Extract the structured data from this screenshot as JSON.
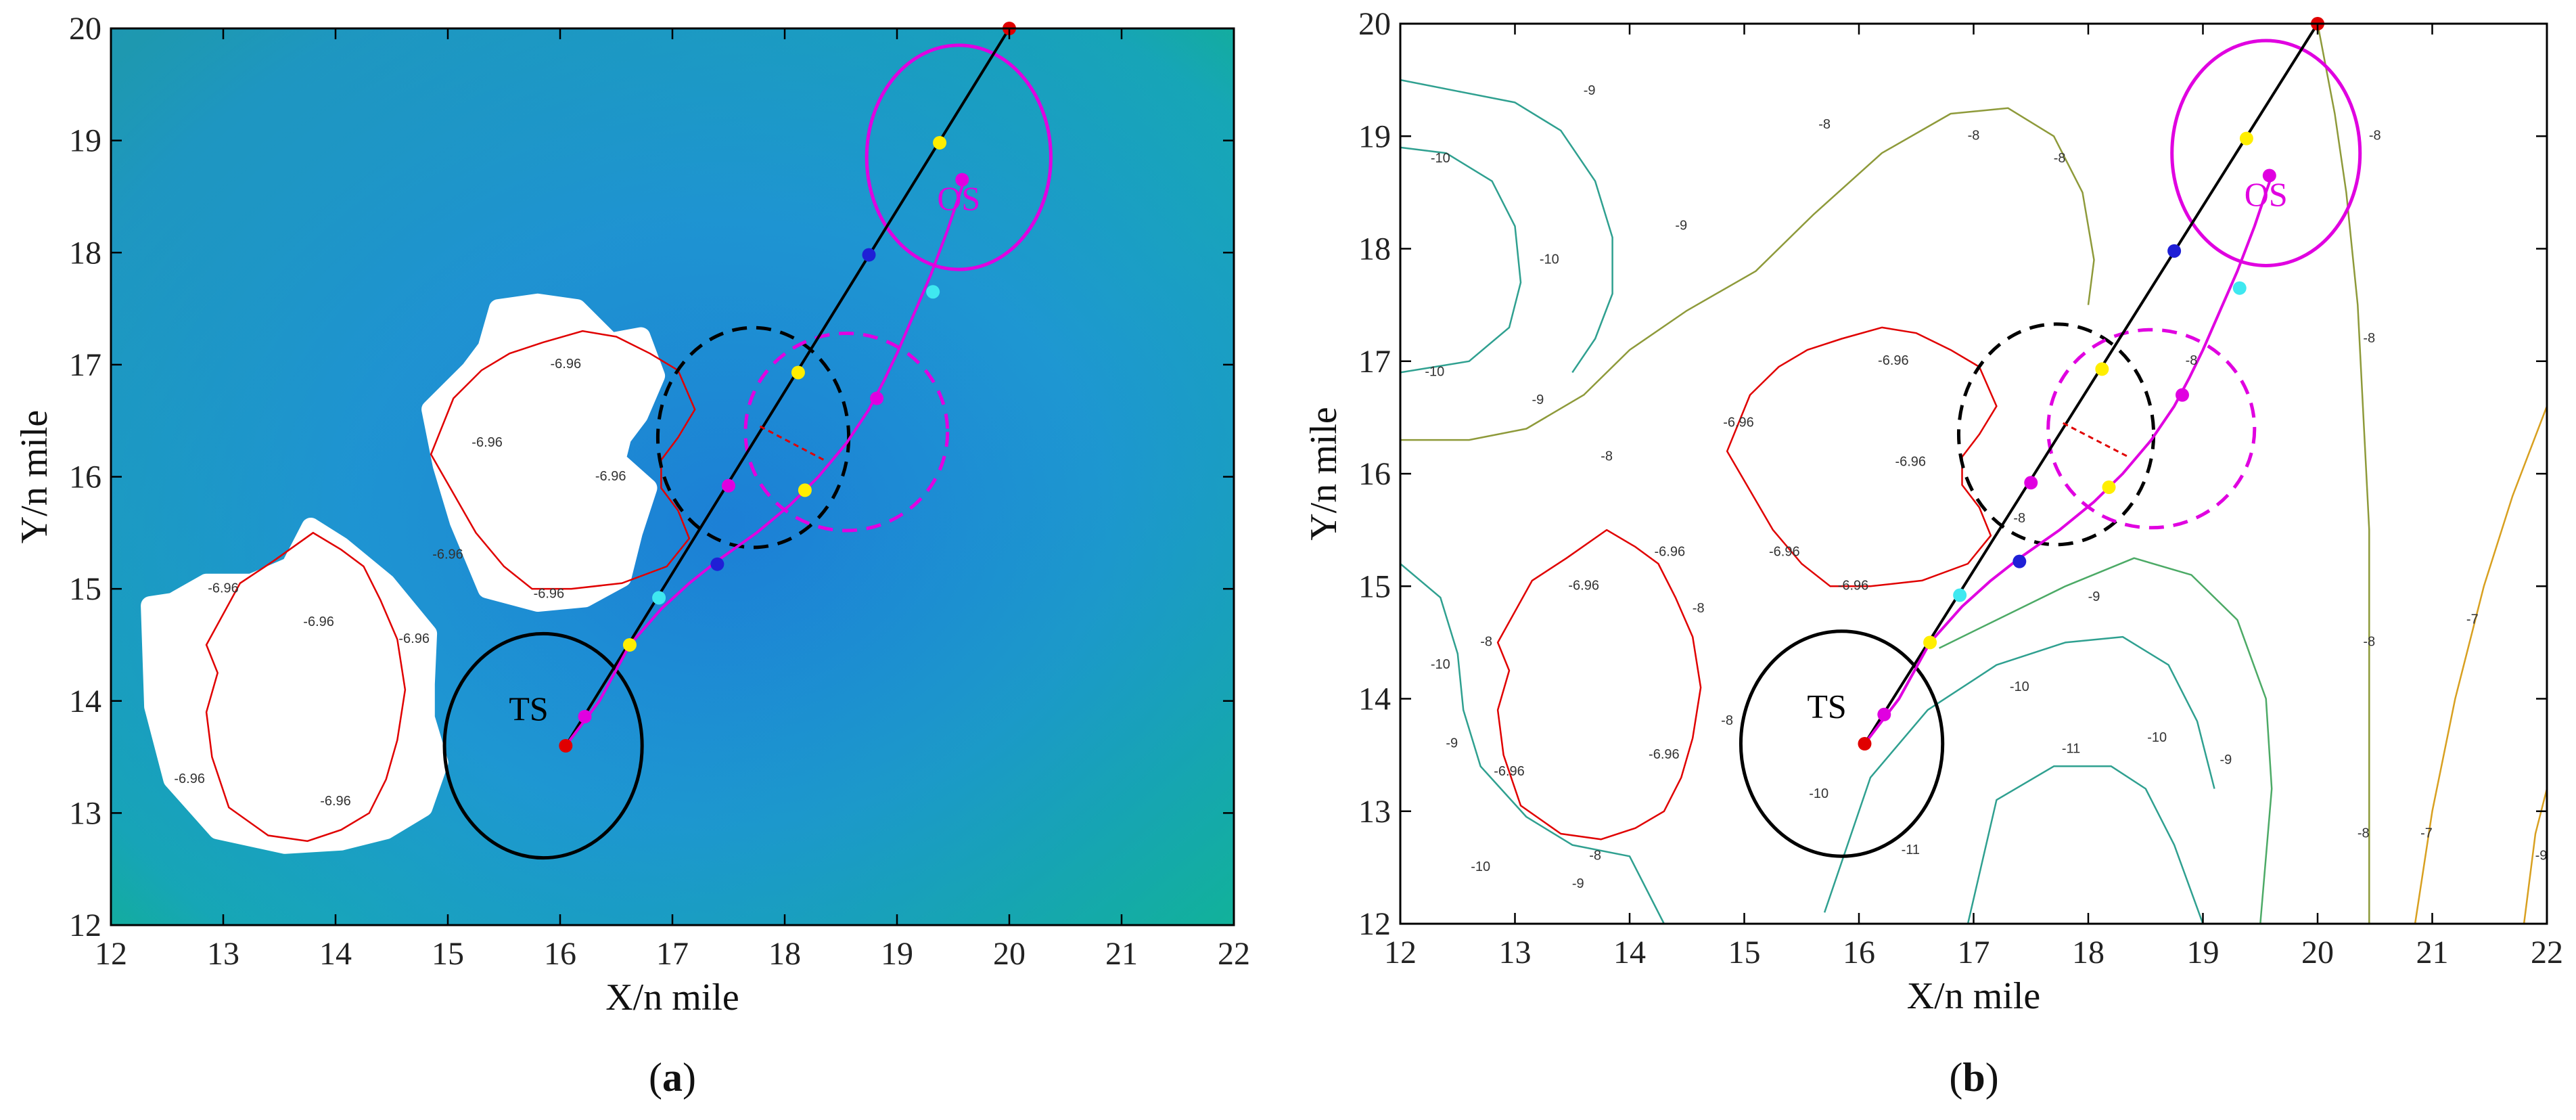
{
  "figure": {
    "panels": [
      "(a)",
      "(b)"
    ]
  },
  "chart_data": [
    {
      "type": "scatter",
      "panel": "(a)",
      "caption_letter": "a",
      "background": "heatmap",
      "xlabel": "X/n mile",
      "ylabel": "Y/n mile",
      "xlim": [
        12,
        22
      ],
      "ylim": [
        12,
        20
      ],
      "xticks": [
        12,
        13,
        14,
        15,
        16,
        17,
        18,
        19,
        20,
        21,
        22
      ],
      "yticks": [
        12,
        13,
        14,
        15,
        16,
        17,
        18,
        19,
        20
      ],
      "annotations": [
        {
          "text": "TS",
          "x": 15.72,
          "y": 13.9,
          "color": "#000000"
        },
        {
          "text": "OS",
          "x": 19.55,
          "y": 18.45,
          "color": "#e000e0"
        }
      ],
      "contour_labels": [
        {
          "text": "-6.96",
          "x": 14.7,
          "y": 14.55,
          "color": "#333"
        },
        {
          "text": "-6.96",
          "x": 13.0,
          "y": 15.0,
          "color": "#333"
        },
        {
          "text": "-6.96",
          "x": 13.85,
          "y": 14.7,
          "color": "#333"
        },
        {
          "text": "-6.96",
          "x": 12.7,
          "y": 13.3,
          "color": "#333"
        },
        {
          "text": "-6.96",
          "x": 14.0,
          "y": 13.1,
          "color": "#333"
        },
        {
          "text": "-6.96",
          "x": 15.0,
          "y": 15.3,
          "color": "#333"
        },
        {
          "text": "-6.96",
          "x": 15.35,
          "y": 16.3,
          "color": "#333"
        },
        {
          "text": "-6.96",
          "x": 15.9,
          "y": 14.95,
          "color": "#333"
        },
        {
          "text": "-6.96",
          "x": 16.45,
          "y": 16.0,
          "color": "#333"
        },
        {
          "text": "-6.96",
          "x": 16.05,
          "y": 17.0,
          "color": "#333"
        }
      ]
    },
    {
      "type": "scatter",
      "panel": "(b)",
      "caption_letter": "b",
      "background": "contour",
      "xlabel": "X/n mile",
      "ylabel": "Y/n mile",
      "xlim": [
        12,
        22
      ],
      "ylim": [
        12,
        20
      ],
      "xticks": [
        12,
        13,
        14,
        15,
        16,
        17,
        18,
        19,
        20,
        21,
        22
      ],
      "yticks": [
        12,
        13,
        14,
        15,
        16,
        17,
        18,
        19,
        20
      ],
      "annotations": [
        {
          "text": "TS",
          "x": 15.72,
          "y": 13.9,
          "color": "#000000"
        },
        {
          "text": "OS",
          "x": 19.55,
          "y": 18.45,
          "color": "#e000e0"
        }
      ],
      "contour_labels": [
        {
          "text": "-10",
          "x": 12.35,
          "y": 18.8,
          "color": "#333"
        },
        {
          "text": "-10",
          "x": 12.3,
          "y": 16.9,
          "color": "#333"
        },
        {
          "text": "-10",
          "x": 13.3,
          "y": 17.9,
          "color": "#333"
        },
        {
          "text": "-9",
          "x": 13.65,
          "y": 19.4,
          "color": "#333"
        },
        {
          "text": "-9",
          "x": 14.45,
          "y": 18.2,
          "color": "#333"
        },
        {
          "text": "-9",
          "x": 13.2,
          "y": 16.65,
          "color": "#333"
        },
        {
          "text": "-8",
          "x": 13.8,
          "y": 16.15,
          "color": "#333"
        },
        {
          "text": "-8",
          "x": 15.7,
          "y": 19.1,
          "color": "#333"
        },
        {
          "text": "-8",
          "x": 17.0,
          "y": 19.0,
          "color": "#333"
        },
        {
          "text": "-8",
          "x": 17.75,
          "y": 18.8,
          "color": "#333"
        },
        {
          "text": "-8",
          "x": 18.9,
          "y": 17.0,
          "color": "#333"
        },
        {
          "text": "-8",
          "x": 20.5,
          "y": 19.0,
          "color": "#333"
        },
        {
          "text": "-8",
          "x": 20.45,
          "y": 17.2,
          "color": "#333"
        },
        {
          "text": "-8",
          "x": 20.45,
          "y": 14.5,
          "color": "#333"
        },
        {
          "text": "-8",
          "x": 20.4,
          "y": 12.8,
          "color": "#333"
        },
        {
          "text": "-8",
          "x": 12.75,
          "y": 14.5,
          "color": "#333"
        },
        {
          "text": "-8",
          "x": 14.6,
          "y": 14.8,
          "color": "#333"
        },
        {
          "text": "-8",
          "x": 14.85,
          "y": 13.8,
          "color": "#333"
        },
        {
          "text": "-8",
          "x": 13.7,
          "y": 12.6,
          "color": "#333"
        },
        {
          "text": "-8",
          "x": 17.4,
          "y": 15.6,
          "color": "#333"
        },
        {
          "text": "-9",
          "x": 12.45,
          "y": 13.6,
          "color": "#333"
        },
        {
          "text": "-9",
          "x": 13.55,
          "y": 12.35,
          "color": "#333"
        },
        {
          "text": "-9",
          "x": 18.05,
          "y": 14.9,
          "color": "#333"
        },
        {
          "text": "-9",
          "x": 19.2,
          "y": 13.45,
          "color": "#333"
        },
        {
          "text": "-9",
          "x": 21.95,
          "y": 12.6,
          "color": "#333"
        },
        {
          "text": "-10",
          "x": 12.35,
          "y": 14.3,
          "color": "#333"
        },
        {
          "text": "-10",
          "x": 12.7,
          "y": 12.5,
          "color": "#333"
        },
        {
          "text": "-10",
          "x": 15.65,
          "y": 13.15,
          "color": "#333"
        },
        {
          "text": "-10",
          "x": 17.4,
          "y": 14.1,
          "color": "#333"
        },
        {
          "text": "-10",
          "x": 18.6,
          "y": 13.65,
          "color": "#333"
        },
        {
          "text": "-11",
          "x": 16.45,
          "y": 12.65,
          "color": "#333"
        },
        {
          "text": "-11",
          "x": 17.85,
          "y": 13.55,
          "color": "#333"
        },
        {
          "text": "-7",
          "x": 20.95,
          "y": 12.8,
          "color": "#333"
        },
        {
          "text": "-7",
          "x": 21.35,
          "y": 14.7,
          "color": "#333"
        },
        {
          "text": "-6.96",
          "x": 13.6,
          "y": 15.0,
          "color": "#333"
        },
        {
          "text": "-6.96",
          "x": 12.95,
          "y": 13.35,
          "color": "#333"
        },
        {
          "text": "-6.96",
          "x": 14.3,
          "y": 13.5,
          "color": "#333"
        },
        {
          "text": "-6.96",
          "x": 14.35,
          "y": 15.3,
          "color": "#333"
        },
        {
          "text": "-6.96",
          "x": 14.95,
          "y": 16.45,
          "color": "#333"
        },
        {
          "text": "-6.96",
          "x": 15.35,
          "y": 15.3,
          "color": "#333"
        },
        {
          "text": "-6.96",
          "x": 15.95,
          "y": 15.0,
          "color": "#333"
        },
        {
          "text": "-6.96",
          "x": 16.45,
          "y": 16.1,
          "color": "#333"
        },
        {
          "text": "-6.96",
          "x": 16.3,
          "y": 17.0,
          "color": "#333"
        }
      ]
    }
  ],
  "tracks": {
    "own_ship_course": {
      "name": "OS planned course",
      "color": "#000000",
      "x": [
        16.05,
        20.0
      ],
      "y": [
        13.6,
        20.0
      ]
    },
    "avoidance_path": {
      "name": "TS/OS avoidance path",
      "color": "#e000e0",
      "x": [
        16.05,
        16.35,
        16.62,
        16.9,
        17.15,
        17.4,
        17.75,
        18.05,
        18.3,
        18.55,
        18.75,
        18.88,
        19.0,
        19.15,
        19.3,
        19.45,
        19.55,
        19.6
      ],
      "y": [
        13.6,
        14.0,
        14.5,
        14.82,
        15.05,
        15.25,
        15.5,
        15.75,
        16.0,
        16.3,
        16.6,
        16.85,
        17.1,
        17.45,
        17.8,
        18.2,
        18.5,
        18.65
      ]
    },
    "encounter_link": {
      "name": "closest approach",
      "color": "#e00000",
      "x": [
        17.78,
        18.35
      ],
      "y": [
        16.45,
        16.15
      ]
    }
  },
  "domains": [
    {
      "name": "TS ship domain",
      "color": "#000000",
      "style": "solid",
      "cx": 15.85,
      "cy": 13.6,
      "rx": 0.88,
      "ry": 1.0
    },
    {
      "name": "OS ship domain",
      "color": "#e000e0",
      "style": "solid",
      "cx": 19.55,
      "cy": 18.85,
      "rx": 0.82,
      "ry": 1.0
    },
    {
      "name": "TS domain at encounter",
      "color": "#000000",
      "style": "dashed",
      "cx": 17.72,
      "cy": 16.35,
      "rx": 0.85,
      "ry": 0.98
    },
    {
      "name": "OS domain at encounter",
      "color": "#e000e0",
      "style": "dashed",
      "cx": 18.55,
      "cy": 16.4,
      "rx": 0.9,
      "ry": 0.88
    }
  ],
  "markers": [
    {
      "x": 20.0,
      "y": 20.0,
      "color": "#e00000"
    },
    {
      "x": 16.05,
      "y": 13.6,
      "color": "#e00000"
    },
    {
      "x": 19.38,
      "y": 18.98,
      "color": "#ffee00"
    },
    {
      "x": 18.75,
      "y": 17.98,
      "color": "#1f1fd6"
    },
    {
      "x": 18.12,
      "y": 16.93,
      "color": "#ffee00"
    },
    {
      "x": 17.5,
      "y": 15.92,
      "color": "#e000e0"
    },
    {
      "x": 16.88,
      "y": 14.92,
      "color": "#3fe8f0"
    },
    {
      "x": 16.62,
      "y": 14.5,
      "color": "#ffee00"
    },
    {
      "x": 17.4,
      "y": 15.22,
      "color": "#1f1fd6"
    },
    {
      "x": 18.18,
      "y": 15.88,
      "color": "#ffee00"
    },
    {
      "x": 18.82,
      "y": 16.7,
      "color": "#e000e0"
    },
    {
      "x": 19.32,
      "y": 17.65,
      "color": "#3fe8f0"
    },
    {
      "x": 19.58,
      "y": 18.65,
      "color": "#e000e0"
    },
    {
      "x": 16.22,
      "y": 13.86,
      "color": "#e000e0"
    }
  ],
  "obstacles_heatmap": [
    {
      "name": "island-left",
      "x": [
        12.35,
        12.55,
        12.85,
        13.25,
        13.6,
        13.78,
        14.05,
        14.45,
        14.82,
        14.8,
        14.8,
        14.92,
        14.78,
        14.45,
        14.05,
        13.55,
        12.95,
        12.55,
        12.38,
        12.35
      ],
      "y": [
        14.85,
        14.88,
        15.05,
        15.05,
        15.2,
        15.55,
        15.38,
        15.05,
        14.6,
        14.15,
        13.85,
        13.45,
        13.05,
        12.85,
        12.75,
        12.72,
        12.85,
        13.3,
        13.95,
        14.85
      ]
    },
    {
      "name": "island-right",
      "x": [
        14.85,
        15.2,
        15.35,
        15.45,
        15.8,
        16.15,
        16.45,
        16.72,
        16.85,
        16.7,
        16.55,
        16.5,
        16.78,
        16.65,
        16.55,
        16.22,
        15.8,
        15.35,
        15.1,
        14.95,
        14.85
      ],
      "y": [
        16.6,
        16.95,
        17.15,
        17.5,
        17.55,
        17.5,
        17.2,
        17.25,
        16.9,
        16.55,
        16.35,
        16.15,
        15.9,
        15.5,
        15.1,
        14.92,
        14.88,
        15.0,
        15.6,
        16.1,
        16.6
      ]
    }
  ],
  "contours_b": [
    {
      "color": "#e00000",
      "x": [
        12.85,
        13.15,
        13.45,
        13.8,
        14.05,
        14.25,
        14.4,
        14.55,
        14.62,
        14.55,
        14.45,
        14.3,
        14.05,
        13.75,
        13.4,
        13.05,
        12.9,
        12.85,
        12.95,
        12.85
      ],
      "y": [
        14.5,
        15.05,
        15.25,
        15.5,
        15.35,
        15.2,
        14.9,
        14.55,
        14.1,
        13.65,
        13.3,
        13.0,
        12.85,
        12.75,
        12.8,
        13.05,
        13.5,
        13.9,
        14.25,
        14.5
      ]
    },
    {
      "color": "#e00000",
      "x": [
        14.85,
        15.05,
        15.3,
        15.55,
        15.85,
        16.2,
        16.5,
        16.8,
        17.05,
        17.2,
        17.05,
        16.9,
        16.9,
        17.05,
        17.15,
        16.95,
        16.55,
        16.1,
        15.75,
        15.5,
        15.25,
        15.05,
        14.85
      ],
      "y": [
        16.2,
        16.7,
        16.95,
        17.1,
        17.2,
        17.3,
        17.25,
        17.1,
        16.95,
        16.6,
        16.35,
        16.15,
        15.9,
        15.7,
        15.45,
        15.2,
        15.05,
        15.0,
        15.0,
        15.2,
        15.5,
        15.85,
        16.2
      ]
    },
    {
      "color": "#8e9a3a",
      "x": [
        12.0,
        12.6,
        13.1,
        13.6,
        14.0,
        14.5,
        15.1,
        15.6,
        16.2,
        16.8,
        17.3,
        17.7,
        17.95,
        18.05,
        18.0
      ],
      "y": [
        16.3,
        16.3,
        16.4,
        16.7,
        17.1,
        17.45,
        17.8,
        18.3,
        18.85,
        19.2,
        19.25,
        19.0,
        18.5,
        17.9,
        17.5
      ]
    },
    {
      "color": "#8e9a3a",
      "x": [
        20.0,
        20.15,
        20.25,
        20.35,
        20.4,
        20.45,
        20.45,
        20.45
      ],
      "y": [
        20.0,
        19.2,
        18.5,
        17.5,
        16.5,
        15.5,
        14.0,
        12.0
      ]
    },
    {
      "color": "#2fa090",
      "x": [
        12.0,
        12.5,
        13.0,
        13.4,
        13.7,
        13.85,
        13.85,
        13.7,
        13.5
      ],
      "y": [
        19.5,
        19.4,
        19.3,
        19.05,
        18.6,
        18.1,
        17.6,
        17.2,
        16.9
      ]
    },
    {
      "color": "#2fa090",
      "x": [
        12.0,
        12.4,
        12.8,
        13.0,
        13.05,
        12.95,
        12.6,
        12.0
      ],
      "y": [
        18.9,
        18.85,
        18.6,
        18.2,
        17.7,
        17.3,
        17.0,
        16.9
      ]
    },
    {
      "color": "#2fa090",
      "x": [
        12.0,
        12.35,
        12.5,
        12.55,
        12.7,
        13.1,
        13.5,
        14.0,
        14.3
      ],
      "y": [
        15.2,
        14.9,
        14.4,
        13.9,
        13.4,
        12.95,
        12.7,
        12.6,
        12.0
      ]
    },
    {
      "color": "#2fa090",
      "x": [
        15.7,
        16.1,
        16.6,
        17.2,
        17.8,
        18.3,
        18.7,
        18.95,
        19.1
      ],
      "y": [
        12.1,
        13.3,
        13.9,
        14.3,
        14.5,
        14.55,
        14.3,
        13.8,
        13.2
      ]
    },
    {
      "color": "#2fa090",
      "x": [
        16.95,
        17.2,
        17.7,
        18.2,
        18.5,
        18.75,
        19.0
      ],
      "y": [
        12.0,
        13.1,
        13.4,
        13.4,
        13.2,
        12.7,
        12.0
      ]
    },
    {
      "color": "#4caa66",
      "x": [
        16.7,
        17.2,
        17.8,
        18.4,
        18.9,
        19.3,
        19.55,
        19.6,
        19.5
      ],
      "y": [
        14.45,
        14.7,
        15.0,
        15.25,
        15.1,
        14.7,
        14.0,
        13.2,
        12.0
      ]
    },
    {
      "color": "#d8a020",
      "x": [
        20.85,
        21.0,
        21.2,
        21.45,
        21.7,
        22.0
      ],
      "y": [
        12.0,
        13.0,
        14.0,
        15.0,
        15.8,
        16.6
      ]
    },
    {
      "color": "#d8a020",
      "x": [
        21.8,
        21.9,
        22.0
      ],
      "y": [
        12.0,
        12.8,
        13.2
      ]
    }
  ]
}
